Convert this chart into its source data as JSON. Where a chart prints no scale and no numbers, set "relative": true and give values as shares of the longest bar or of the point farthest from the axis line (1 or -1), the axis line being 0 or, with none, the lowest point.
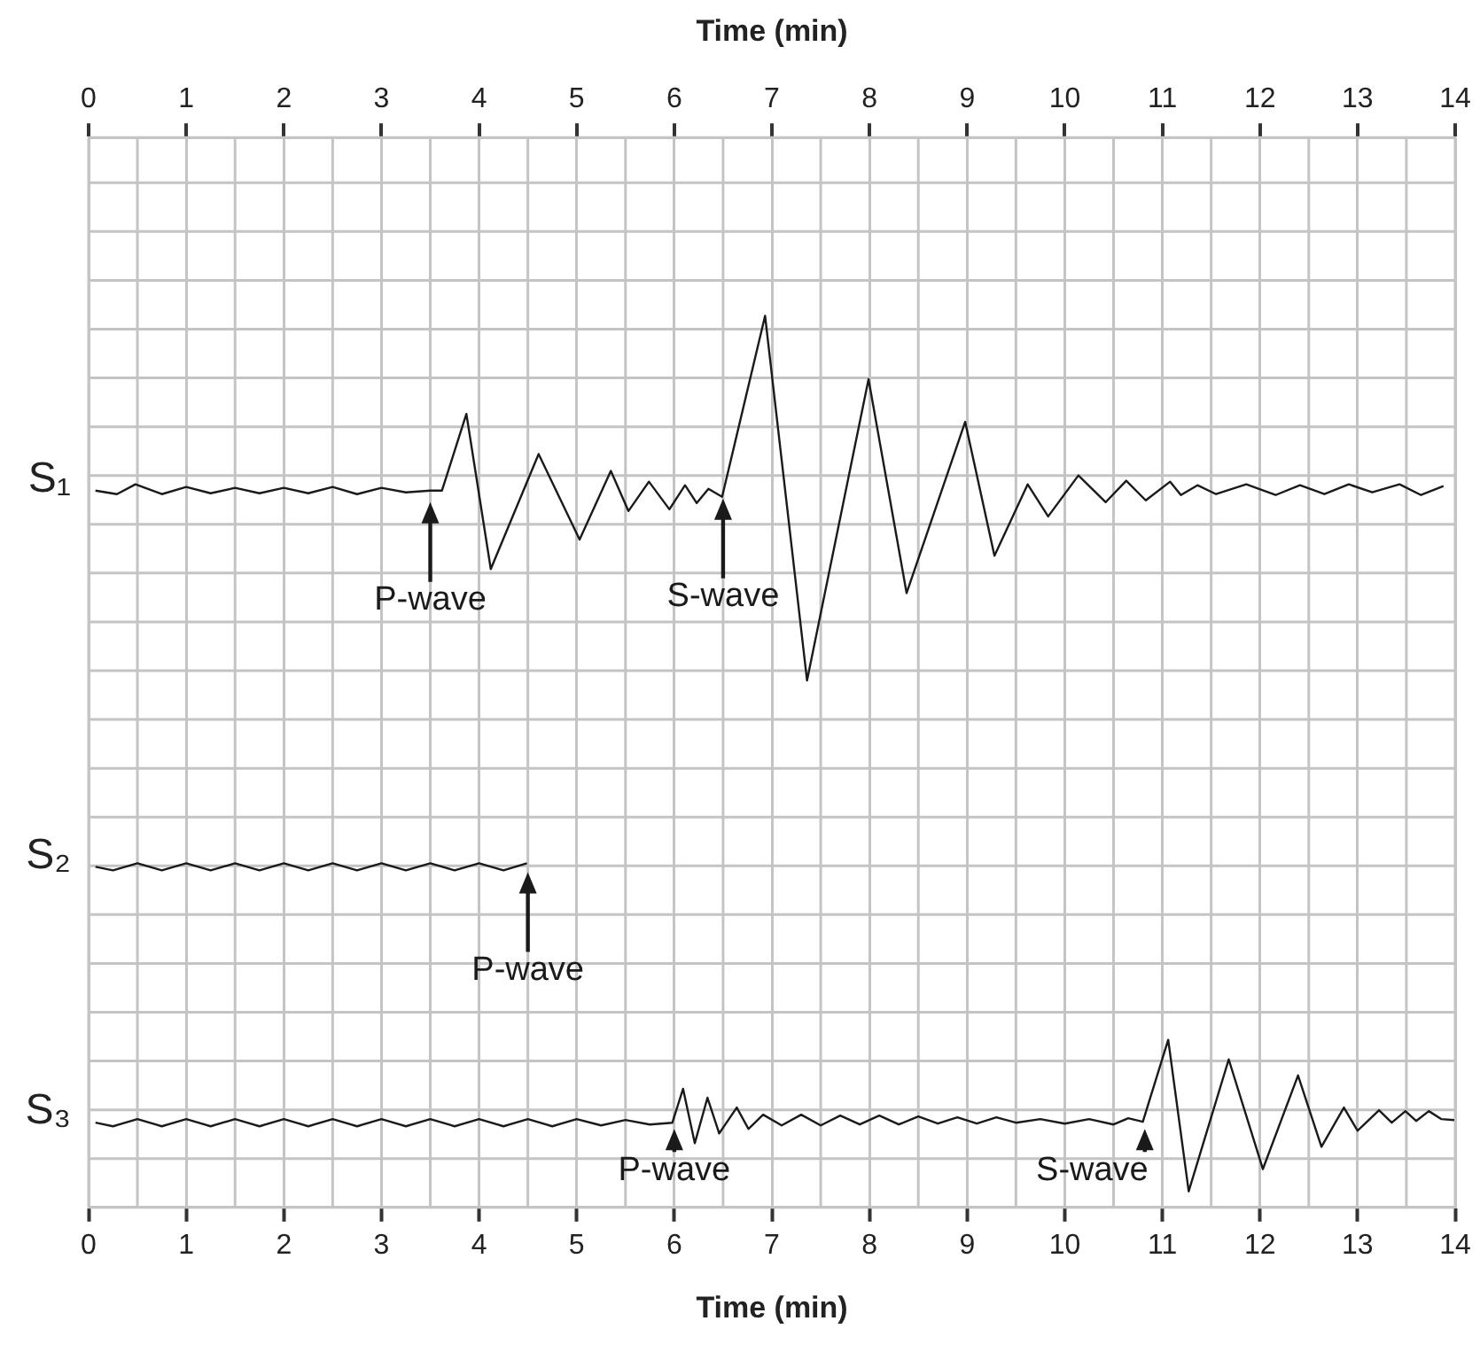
{
  "chart_data": {
    "type": "line",
    "relative": true,
    "xlabel": "Time (min)",
    "x2label": "Time (min)",
    "xlim": [
      0,
      14
    ],
    "xticks": [
      0,
      1,
      2,
      3,
      4,
      5,
      6,
      7,
      8,
      9,
      10,
      11,
      12,
      13,
      14
    ],
    "x2lim": [
      0,
      14
    ],
    "x2ticks": [
      0,
      1,
      2,
      3,
      4,
      5,
      6,
      7,
      8,
      9,
      10,
      11,
      12,
      13,
      14
    ],
    "grid": true,
    "legend": false,
    "tick_labels": "x",
    "series": [
      {
        "name": "S₁",
        "color": "#1a1a1a",
        "x": [
          0.07,
          0.29,
          0.48,
          0.75,
          1.0,
          1.25,
          1.5,
          1.75,
          2.0,
          2.25,
          2.5,
          2.75,
          3.0,
          3.25,
          3.5,
          3.62,
          3.87,
          4.12,
          4.61,
          5.03,
          5.35,
          5.53,
          5.74,
          5.95,
          6.11,
          6.23,
          6.35,
          6.49,
          6.93,
          7.36,
          7.99,
          8.38,
          8.98,
          9.28,
          9.62,
          9.83,
          10.14,
          10.42,
          10.63,
          10.83,
          11.08,
          11.19,
          11.36,
          11.55,
          11.86,
          12.16,
          12.41,
          12.66,
          12.91,
          13.15,
          13.43,
          13.65,
          13.88
        ],
        "values": [
          0.804,
          0.8,
          0.811,
          0.8,
          0.808,
          0.801,
          0.807,
          0.801,
          0.807,
          0.801,
          0.808,
          0.8,
          0.807,
          0.802,
          0.804,
          0.804,
          0.89,
          0.716,
          0.845,
          0.749,
          0.826,
          0.781,
          0.814,
          0.783,
          0.81,
          0.79,
          0.806,
          0.797,
          1,
          0.591,
          0.929,
          0.689,
          0.881,
          0.731,
          0.811,
          0.775,
          0.821,
          0.791,
          0.815,
          0.793,
          0.814,
          0.799,
          0.81,
          0.8,
          0.811,
          0.799,
          0.81,
          0.8,
          0.811,
          0.802,
          0.811,
          0.799,
          0.809
        ]
      },
      {
        "name": "S₂",
        "color": "#1a1a1a",
        "x": [
          0.07,
          0.25,
          0.5,
          0.75,
          1.0,
          1.25,
          1.5,
          1.75,
          2.0,
          2.25,
          2.5,
          2.75,
          3.0,
          3.25,
          3.5,
          3.75,
          4.0,
          4.25,
          4.49
        ],
        "values": [
          0.382,
          0.378,
          0.386,
          0.378,
          0.386,
          0.378,
          0.386,
          0.378,
          0.386,
          0.378,
          0.386,
          0.378,
          0.386,
          0.378,
          0.386,
          0.378,
          0.386,
          0.378,
          0.386
        ]
      },
      {
        "name": "S₃",
        "color": "#1a1a1a",
        "x": [
          0.07,
          0.25,
          0.5,
          0.75,
          1.0,
          1.25,
          1.5,
          1.75,
          2.0,
          2.25,
          2.5,
          2.75,
          3.0,
          3.25,
          3.5,
          3.75,
          4.0,
          4.25,
          4.5,
          4.75,
          5.0,
          5.25,
          5.5,
          5.75,
          5.98,
          6.09,
          6.21,
          6.34,
          6.46,
          6.64,
          6.76,
          6.91,
          7.1,
          7.3,
          7.5,
          7.7,
          7.9,
          8.1,
          8.3,
          8.5,
          8.7,
          8.9,
          9.1,
          9.3,
          9.5,
          9.75,
          10.0,
          10.25,
          10.5,
          10.65,
          10.8,
          11.06,
          11.27,
          11.68,
          12.03,
          12.39,
          12.63,
          12.86,
          13.0,
          13.22,
          13.35,
          13.49,
          13.6,
          13.73,
          13.86,
          13.99
        ],
        "values": [
          0.095,
          0.091,
          0.099,
          0.091,
          0.099,
          0.091,
          0.099,
          0.091,
          0.099,
          0.091,
          0.099,
          0.091,
          0.099,
          0.091,
          0.099,
          0.091,
          0.099,
          0.091,
          0.099,
          0.091,
          0.099,
          0.092,
          0.098,
          0.093,
          0.095,
          0.133,
          0.072,
          0.123,
          0.083,
          0.112,
          0.088,
          0.104,
          0.092,
          0.104,
          0.092,
          0.103,
          0.093,
          0.103,
          0.093,
          0.102,
          0.094,
          0.101,
          0.094,
          0.101,
          0.095,
          0.099,
          0.094,
          0.099,
          0.093,
          0.1,
          0.096,
          0.188,
          0.018,
          0.166,
          0.043,
          0.148,
          0.068,
          0.112,
          0.086,
          0.109,
          0.095,
          0.108,
          0.097,
          0.108,
          0.099,
          0.098
        ]
      }
    ],
    "annotations": [
      {
        "text": "P-wave",
        "x": 3.5,
        "y": 0.793
      },
      {
        "text": "S-wave",
        "x": 6.5,
        "y": 0.797
      },
      {
        "text": "P-wave",
        "x": 4.5,
        "y": 0.378
      },
      {
        "text": "P-wave",
        "x": 6.0,
        "y": 0.09
      },
      {
        "text": "S-wave",
        "x": 10.82,
        "y": 0.09
      }
    ]
  }
}
